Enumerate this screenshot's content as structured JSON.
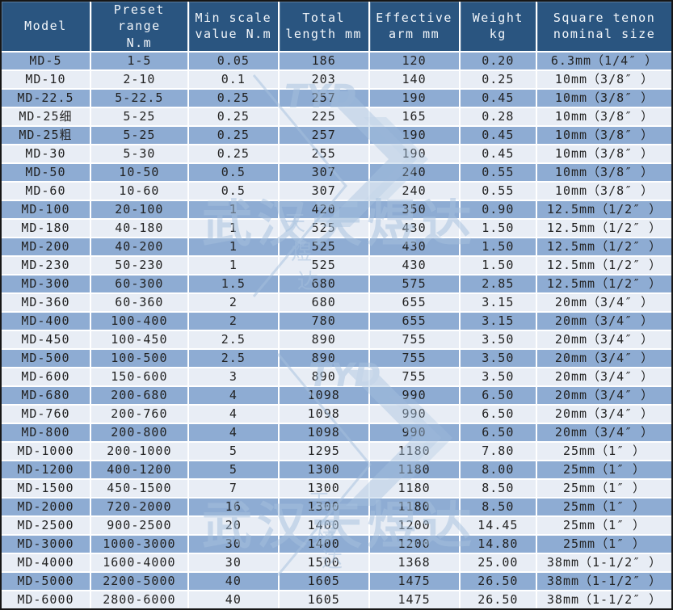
{
  "table": {
    "headers": [
      "Model",
      "Preset range\nN.m",
      "Min scale\nvalue N.m",
      "Total\nlength mm",
      "Effective\narm mm",
      "Weight kg",
      "Square tenon\nnominal size"
    ],
    "rows": [
      [
        "MD-5",
        "1-5",
        "0.05",
        "186",
        "120",
        "0.20",
        "6.3mm（1/4″ ）"
      ],
      [
        "MD-10",
        "2-10",
        "0.1",
        "203",
        "140",
        "0.25",
        "10mm（3/8″ ）"
      ],
      [
        "MD-22.5",
        "5-22.5",
        "0.25",
        "257",
        "190",
        "0.45",
        "10mm（3/8″ ）"
      ],
      [
        "MD-25细",
        "5-25",
        "0.25",
        "225",
        "165",
        "0.28",
        "10mm（3/8″ ）"
      ],
      [
        "MD-25粗",
        "5-25",
        "0.25",
        "257",
        "190",
        "0.45",
        "10mm（3/8″ ）"
      ],
      [
        "MD-30",
        "5-30",
        "0.25",
        "255",
        "190",
        "0.45",
        "10mm（3/8″ ）"
      ],
      [
        "MD-50",
        "10-50",
        "0.5",
        "307",
        "240",
        "0.55",
        "10mm（3/8″ ）"
      ],
      [
        "MD-60",
        "10-60",
        "0.5",
        "307",
        "240",
        "0.55",
        "10mm（3/8″ ）"
      ],
      [
        "MD-100",
        "20-100",
        "1",
        "420",
        "350",
        "0.90",
        "12.5mm（1/2″ ）"
      ],
      [
        "MD-180",
        "40-180",
        "1",
        "525",
        "430",
        "1.50",
        "12.5mm（1/2″ ）"
      ],
      [
        "MD-200",
        "40-200",
        "1",
        "525",
        "430",
        "1.50",
        "12.5mm（1/2″ ）"
      ],
      [
        "MD-230",
        "50-230",
        "1",
        "525",
        "430",
        "1.50",
        "12.5mm（1/2″ ）"
      ],
      [
        "MD-300",
        "60-300",
        "1.5",
        "680",
        "575",
        "2.85",
        "12.5mm（1/2″ ）"
      ],
      [
        "MD-360",
        "60-360",
        "2",
        "680",
        "655",
        "3.15",
        "20mm（3/4″ ）"
      ],
      [
        "MD-400",
        "100-400",
        "2",
        "780",
        "655",
        "3.15",
        "20mm（3/4″ ）"
      ],
      [
        "MD-450",
        "100-450",
        "2.5",
        "890",
        "755",
        "3.50",
        "20mm（3/4″ ）"
      ],
      [
        "MD-500",
        "100-500",
        "2.5",
        "890",
        "755",
        "3.50",
        "20mm（3/4″ ）"
      ],
      [
        "MD-600",
        "150-600",
        "3",
        "890",
        "755",
        "3.50",
        "20mm（3/4″ ）"
      ],
      [
        "MD-680",
        "200-680",
        "4",
        "1098",
        "990",
        "6.50",
        "20mm（3/4″ ）"
      ],
      [
        "MD-760",
        "200-760",
        "4",
        "1098",
        "990",
        "6.50",
        "20mm（3/4″ ）"
      ],
      [
        "MD-800",
        "200-800",
        "4",
        "1098",
        "990",
        "6.50",
        "20mm（3/4″ ）"
      ],
      [
        "MD-1000",
        "200-1000",
        "5",
        "1295",
        "1180",
        "7.80",
        "25mm（1″ ）"
      ],
      [
        "MD-1200",
        "400-1200",
        "5",
        "1300",
        "1180",
        "8.00",
        "25mm（1″ ）"
      ],
      [
        "MD-1500",
        "450-1500",
        "7",
        "1300",
        "1180",
        "8.50",
        "25mm（1″ ）"
      ],
      [
        "MD-2000",
        "720-2000",
        "16",
        "1300",
        "1180",
        "8.50",
        "25mm（1″ ）"
      ],
      [
        "MD-2500",
        "900-2500",
        "20",
        "1400",
        "1200",
        "14.45",
        "25mm（1″ ）"
      ],
      [
        "MD-3000",
        "1000-3000",
        "30",
        "1400",
        "1200",
        "14.80",
        "25mm（1″ ）"
      ],
      [
        "MD-4000",
        "1600-4000",
        "30",
        "1500",
        "1368",
        "25.00",
        "38mm（1-1/2″ ）"
      ],
      [
        "MD-5000",
        "2200-5000",
        "40",
        "1605",
        "1475",
        "26.50",
        "38mm（1-1/2″ ）"
      ],
      [
        "MD-6000",
        "2800-6000",
        "40",
        "1605",
        "1475",
        "26.50",
        "38mm（1-1/2″ ）"
      ]
    ]
  },
  "watermark": {
    "brand_text": "武汉天煜达",
    "logo_text": "TYD",
    "logo_vertical_text": "天煜达"
  },
  "colors": {
    "header_bg": "#2A5580",
    "header_text": "#F2F6FA",
    "row_dark": "#8EACD3",
    "row_light": "#E8EDF5",
    "cell_text": "#222222",
    "watermark": "#A6C1DE",
    "grid_line": "#FFFFFF",
    "outer_border": "#161616"
  }
}
